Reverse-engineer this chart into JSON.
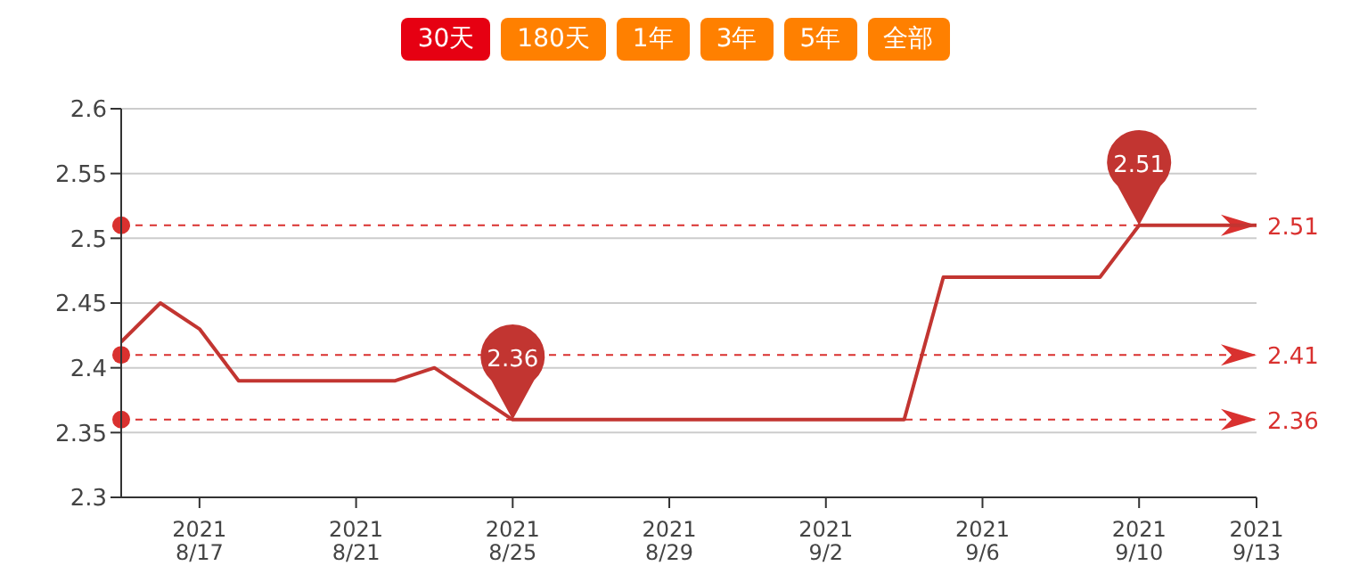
{
  "chart_data": {
    "type": "line",
    "x": [
      "2021-08-15",
      "2021-08-16",
      "2021-08-17",
      "2021-08-18",
      "2021-08-22",
      "2021-08-23",
      "2021-08-25",
      "2021-09-04",
      "2021-09-05",
      "2021-09-09",
      "2021-09-10",
      "2021-09-13"
    ],
    "series": [
      {
        "color": "#c23531",
        "values": [
          2.42,
          2.45,
          2.43,
          2.39,
          2.39,
          2.4,
          2.36,
          2.36,
          2.47,
          2.47,
          2.51,
          2.51
        ]
      }
    ],
    "xlim": [
      "2021-08-15",
      "2021-09-13"
    ],
    "xticks": [
      {
        "value": "2021-08-17",
        "label": "2021\n8/17"
      },
      {
        "value": "2021-08-21",
        "label": "2021\n8/21"
      },
      {
        "value": "2021-08-25",
        "label": "2021\n8/25"
      },
      {
        "value": "2021-08-29",
        "label": "2021\n8/29"
      },
      {
        "value": "2021-09-02",
        "label": "2021\n9/2"
      },
      {
        "value": "2021-09-06",
        "label": "2021\n9/6"
      },
      {
        "value": "2021-09-10",
        "label": "2021\n9/10"
      },
      {
        "value": "2021-09-13",
        "label": "2021\n9/13"
      }
    ],
    "ylim": [
      2.3,
      2.6
    ],
    "yticks": [
      2.3,
      2.35,
      2.4,
      2.45,
      2.5,
      2.55,
      2.6
    ],
    "grid": "y",
    "legend": false,
    "marker": "none",
    "line_style": "solid",
    "ref_lines": [
      {
        "axis": "y",
        "value": 2.51,
        "label": "2.51",
        "color": "#d9312f",
        "line_style": "dashed"
      },
      {
        "axis": "y",
        "value": 2.41,
        "label": "2.41",
        "color": "#d9312f",
        "line_style": "dashed"
      },
      {
        "axis": "y",
        "value": 2.36,
        "label": "2.36",
        "color": "#d9312f",
        "line_style": "dashed"
      }
    ],
    "annotations": [
      "30天",
      "180天",
      "1年",
      "3年",
      "5年",
      "全部",
      {
        "text": "2.36",
        "x": "2021-08-25",
        "y": 2.36
      },
      {
        "text": "2.51",
        "x": "2021-09-10",
        "y": 2.51
      }
    ]
  }
}
